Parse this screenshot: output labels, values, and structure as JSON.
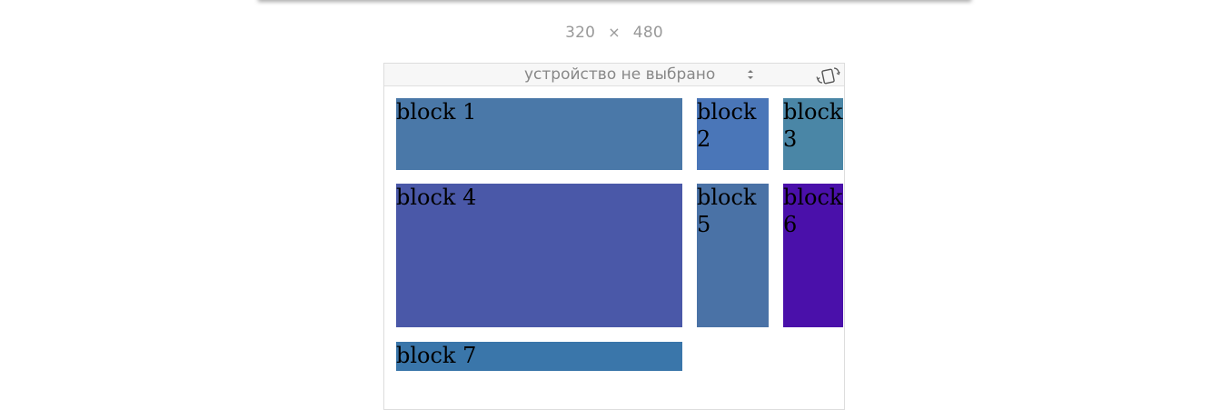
{
  "viewport_size": {
    "width": "320",
    "separator": "×",
    "height": "480"
  },
  "device_selector": {
    "selected": "устройство не выбрано"
  },
  "icons": {
    "select_arrows": "up-down-arrows-icon",
    "rotate": "rotate-device-icon"
  },
  "blocks": [
    {
      "label": "block 1",
      "color": "#4a78a8"
    },
    {
      "label": "block 2",
      "color": "#4a76b8"
    },
    {
      "label": "block 3",
      "color": "#4a86a6"
    },
    {
      "label": "block 4",
      "color": "#4a58a8"
    },
    {
      "label": "block 5",
      "color": "#4a72a6"
    },
    {
      "label": "block 6",
      "color": "#4a10aa"
    },
    {
      "label": "block 7",
      "color": "#3a76aa"
    }
  ]
}
